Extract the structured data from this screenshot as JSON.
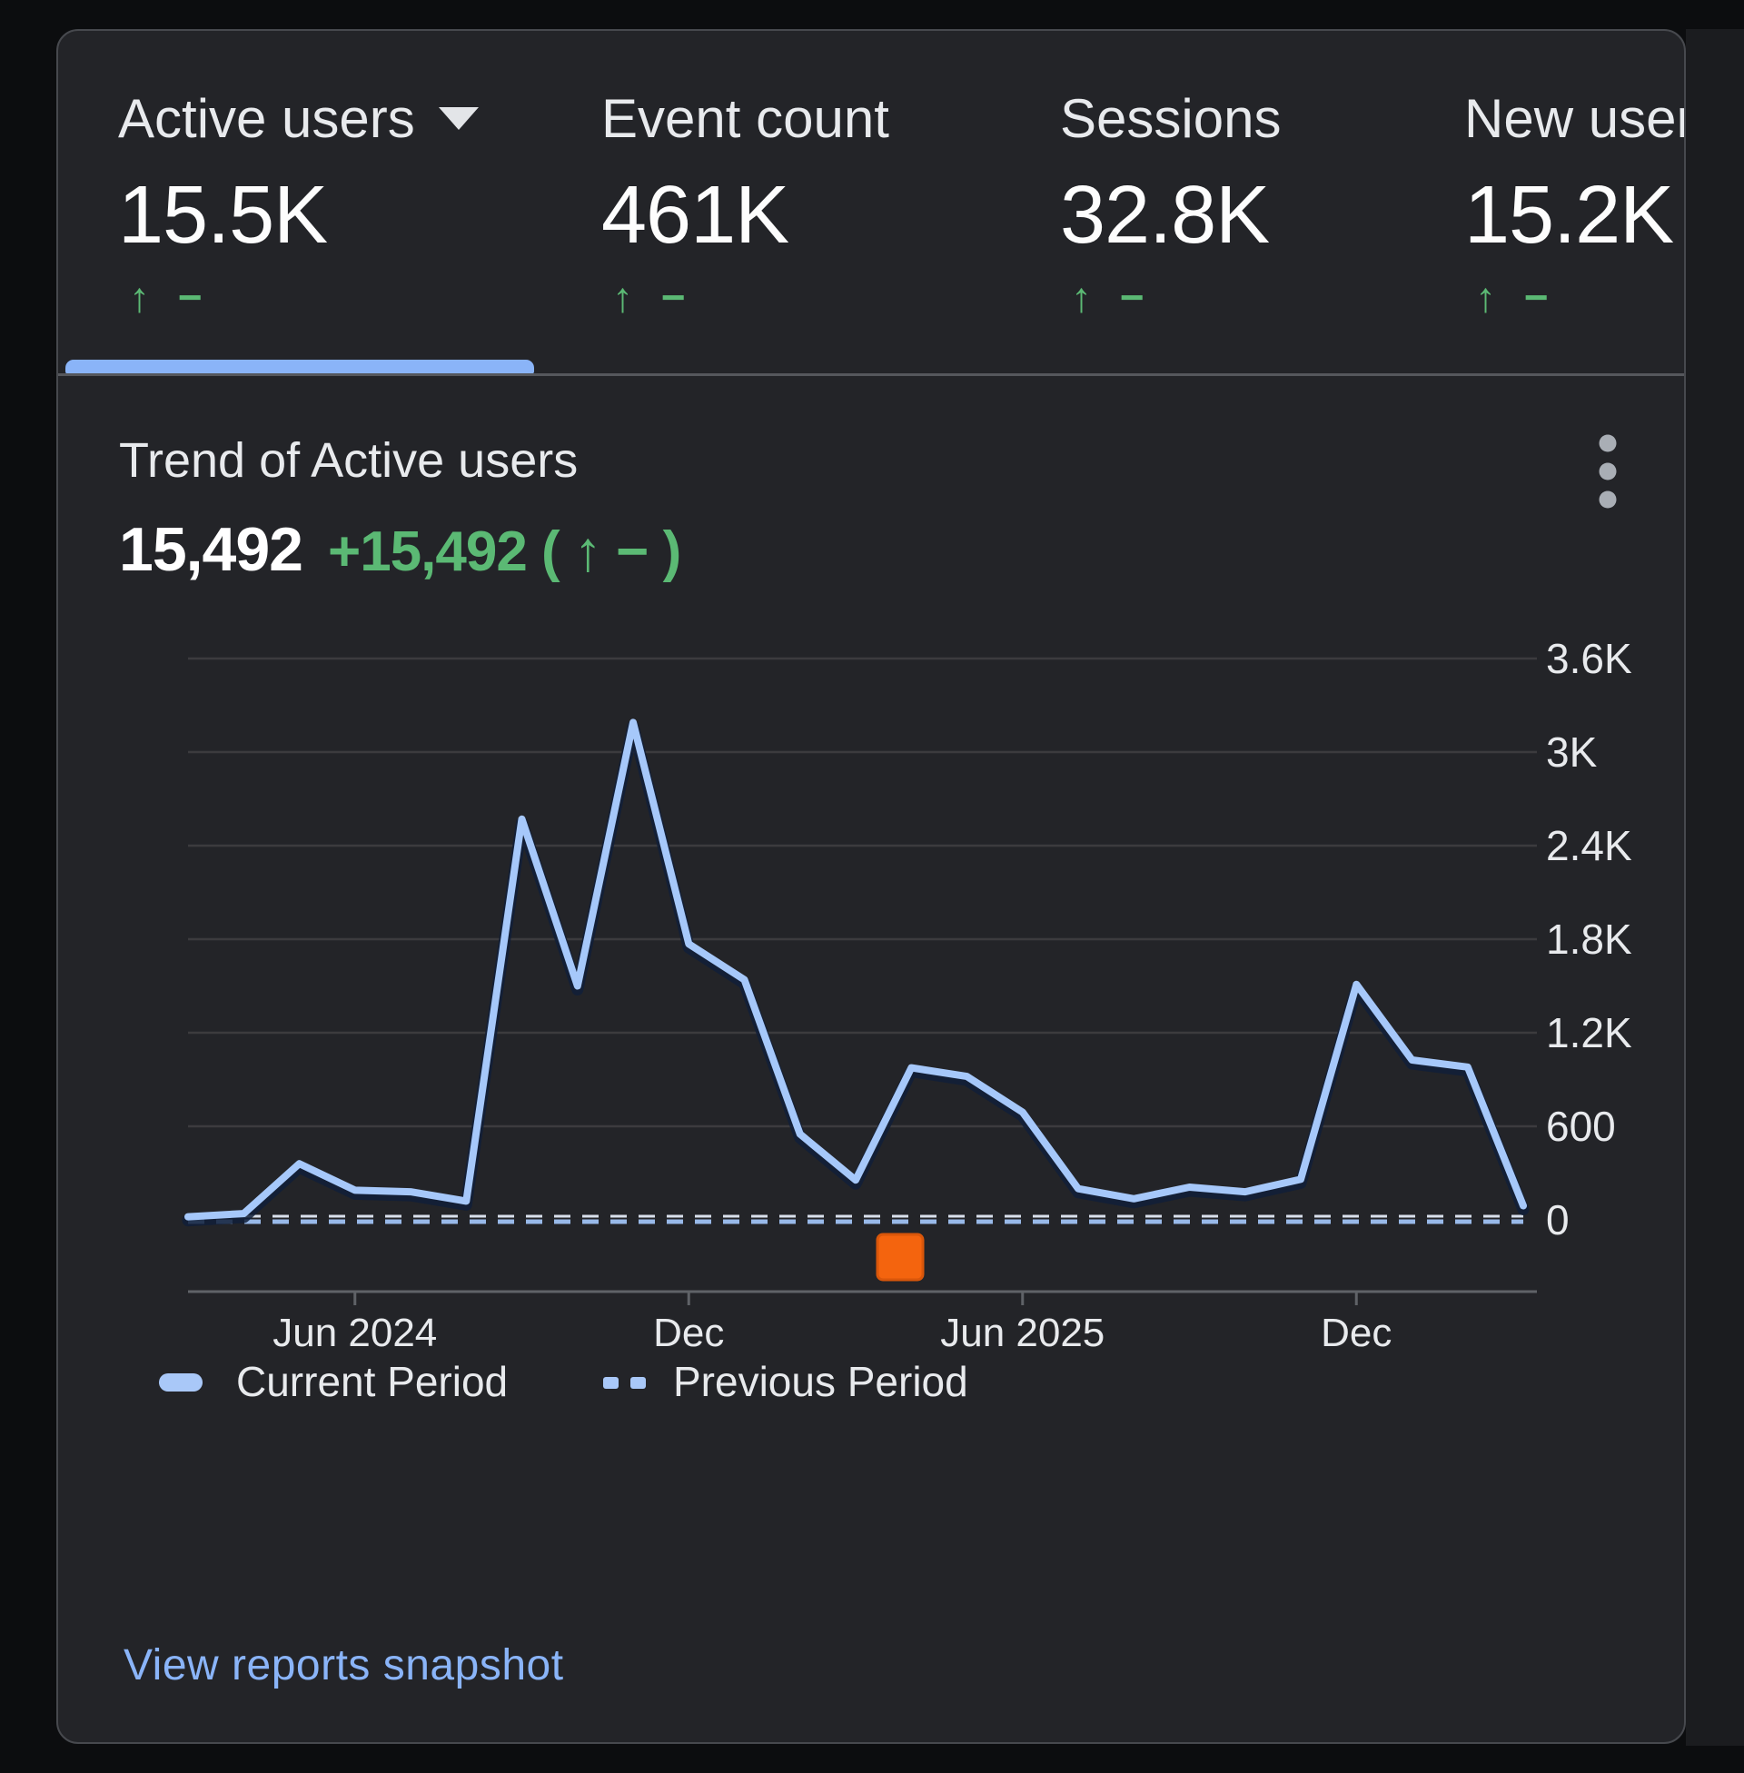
{
  "metrics": {
    "tabs": [
      {
        "label": "Active users",
        "value": "15.5K",
        "delta": "↑ −",
        "selected": true,
        "has_dropdown": true
      },
      {
        "label": "Event count",
        "value": "461K",
        "delta": "↑ −",
        "selected": false
      },
      {
        "label": "Sessions",
        "value": "32.8K",
        "delta": "↑ −",
        "selected": false
      },
      {
        "label": "New users",
        "value": "15.2K",
        "delta": "↑ −",
        "selected": false
      }
    ]
  },
  "trend": {
    "title": "Trend of Active users",
    "value": "15,492",
    "delta": "+15,492 ( ↑ − )"
  },
  "chart_data": {
    "type": "line",
    "title": "Trend of Active users",
    "x": [
      "Mar 2024",
      "Apr 2024",
      "May 2024",
      "Jun 2024",
      "Jul 2024",
      "Aug 2024",
      "Sep 2024",
      "Oct 2024",
      "Nov 2024",
      "Dec 2024",
      "Jan 2025",
      "Feb 2025",
      "Mar 2025",
      "Apr 2025",
      "May 2025",
      "Jun 2025",
      "Jul 2025",
      "Aug 2025",
      "Sep 2025",
      "Oct 2025",
      "Nov 2025",
      "Dec 2025",
      "Jan 2026",
      "Feb 2026",
      "Mar 2026"
    ],
    "x_tick_labels": [
      "Jun 2024",
      "Dec",
      "Jun 2025",
      "Dec"
    ],
    "x_tick_indices": [
      3,
      9,
      15,
      21
    ],
    "y_ticks": [
      0,
      600,
      1200,
      1800,
      2400,
      3000,
      3600
    ],
    "y_tick_labels": [
      "0",
      "600",
      "1.2K",
      "1.8K",
      "2.4K",
      "3K",
      "3.6K"
    ],
    "ylim": [
      0,
      3800
    ],
    "grid": true,
    "legend_position": "bottom",
    "series": [
      {
        "name": "Current Period",
        "style": "solid",
        "values": [
          20,
          40,
          360,
          190,
          180,
          120,
          2570,
          1500,
          3190,
          1770,
          1540,
          550,
          255,
          975,
          920,
          690,
          200,
          135,
          210,
          180,
          260,
          1510,
          1025,
          980,
          90
        ]
      },
      {
        "name": "Previous Period",
        "style": "dashed",
        "values": [
          0,
          0,
          0,
          0,
          0,
          0,
          0,
          0,
          0,
          0,
          0,
          0,
          0,
          0,
          0,
          0,
          0,
          0,
          0,
          0,
          0,
          0,
          0,
          0,
          0
        ]
      }
    ],
    "annotation": {
      "name": "data-flag-marker",
      "x_index": 12.8,
      "position": "below-axis"
    }
  },
  "legend": {
    "current_label": "Current Period",
    "previous_label": "Previous Period"
  },
  "footer": {
    "link_label": "View reports snapshot"
  },
  "colors": {
    "card_bg": "#232428",
    "accent_blue": "#8ab4f8",
    "line_blue": "#a6c8fa",
    "green": "#5bb974",
    "orange_marker": "#f4640e",
    "text": "#e8eaed"
  }
}
